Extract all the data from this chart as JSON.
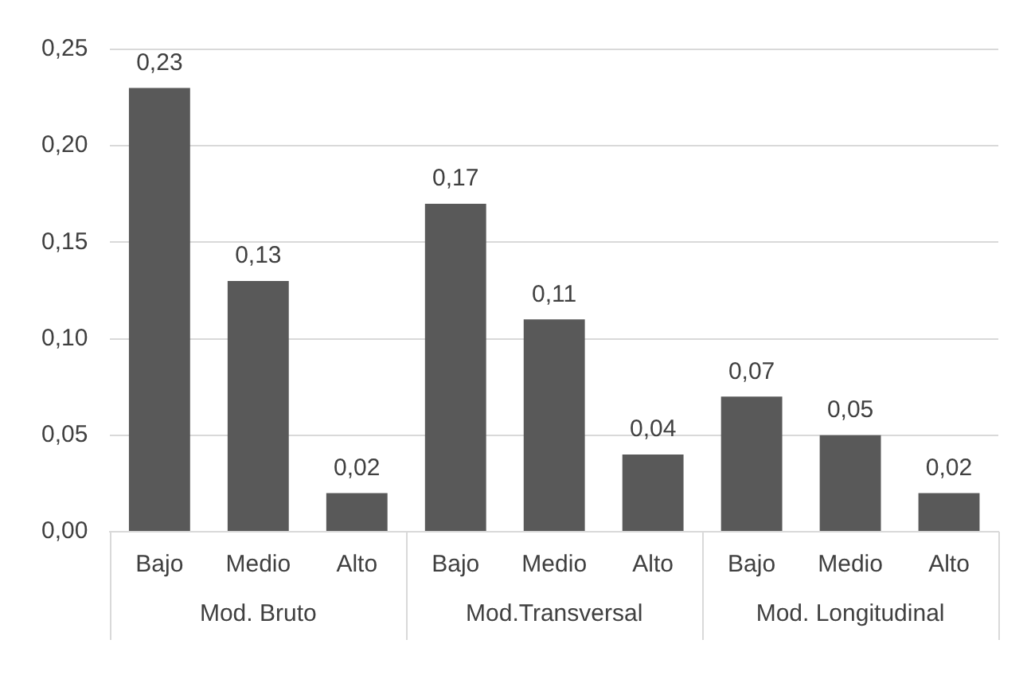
{
  "chart_data": {
    "type": "bar",
    "categories": [
      "Bajo",
      "Medio",
      "Alto",
      "Bajo",
      "Medio",
      "Alto",
      "Bajo",
      "Medio",
      "Alto"
    ],
    "values": [
      0.23,
      0.13,
      0.02,
      0.17,
      0.11,
      0.04,
      0.07,
      0.05,
      0.02
    ],
    "value_labels": [
      "0,23",
      "0,13",
      "0,02",
      "0,17",
      "0,11",
      "0,04",
      "0,07",
      "0,05",
      "0,02"
    ],
    "color": "#595959",
    "ylim": [
      0,
      0.25
    ],
    "yticks": [
      {
        "value": 0,
        "label": "0,00"
      },
      {
        "value": 0.05,
        "label": "0,05"
      },
      {
        "value": 0.1,
        "label": "0,10"
      },
      {
        "value": 0.15,
        "label": "0,15"
      },
      {
        "value": 0.2,
        "label": "0,20"
      },
      {
        "value": 0.25,
        "label": "0,25"
      }
    ],
    "grid": "y",
    "annotations": [
      "Mod. Bruto",
      "Mod.Transversal",
      "Mod. Longitudinal"
    ]
  }
}
